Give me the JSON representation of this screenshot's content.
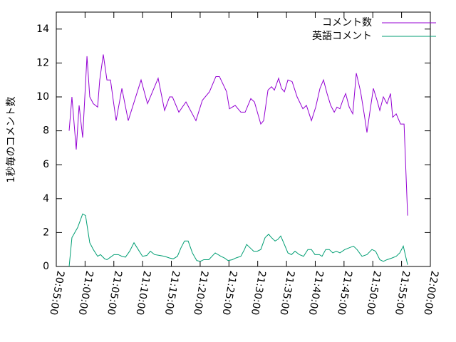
{
  "chart_data": {
    "type": "line",
    "ylabel": "1秒毎のコメント数",
    "xlim": [
      75300,
      79200
    ],
    "xticks": [
      {
        "value": 75300,
        "label": "20:55:00"
      },
      {
        "value": 75600,
        "label": "21:00:00"
      },
      {
        "value": 75900,
        "label": "21:05:00"
      },
      {
        "value": 76200,
        "label": "21:10:00"
      },
      {
        "value": 76500,
        "label": "21:15:00"
      },
      {
        "value": 76800,
        "label": "21:20:00"
      },
      {
        "value": 77100,
        "label": "21:25:00"
      },
      {
        "value": 77400,
        "label": "21:30:00"
      },
      {
        "value": 77700,
        "label": "21:35:00"
      },
      {
        "value": 78000,
        "label": "21:40:00"
      },
      {
        "value": 78300,
        "label": "21:45:00"
      },
      {
        "value": 78600,
        "label": "21:50:00"
      },
      {
        "value": 78900,
        "label": "21:55:00"
      },
      {
        "value": 79200,
        "label": "22:00:00"
      }
    ],
    "ylim": [
      0,
      15
    ],
    "yticks": [
      0,
      2,
      4,
      6,
      8,
      10,
      12,
      14
    ],
    "grid": false,
    "legend": "top-right",
    "series": [
      {
        "name": "コメント数",
        "color": "#9400d3",
        "x": [
          75434,
          75463,
          75508,
          75538,
          75575,
          75620,
          75649,
          75686,
          75731,
          75753,
          75790,
          75828,
          75865,
          75894,
          75924,
          75984,
          76050,
          76184,
          76251,
          76362,
          76429,
          76481,
          76511,
          76578,
          76652,
          76756,
          76823,
          76897,
          76964,
          77001,
          77076,
          77105,
          77165,
          77224,
          77269,
          77328,
          77366,
          77432,
          77462,
          77507,
          77544,
          77574,
          77618,
          77648,
          77678,
          77715,
          77759,
          77811,
          77871,
          77908,
          77960,
          78005,
          78049,
          78086,
          78123,
          78161,
          78198,
          78227,
          78257,
          78287,
          78317,
          78354,
          78391,
          78428,
          78473,
          78510,
          78539,
          78569,
          78606,
          78644,
          78673,
          78710,
          78748,
          78785,
          78807,
          78844,
          78889,
          78926,
          78963
        ],
        "values": [
          8.0,
          10.0,
          6.9,
          9.5,
          7.6,
          12.4,
          10.0,
          9.6,
          9.4,
          11.0,
          12.5,
          11.0,
          11.0,
          9.8,
          8.6,
          10.5,
          8.6,
          11.0,
          9.6,
          11.1,
          9.2,
          10.0,
          10.0,
          9.1,
          9.7,
          8.6,
          9.8,
          10.3,
          11.2,
          11.2,
          10.3,
          9.3,
          9.5,
          9.1,
          9.1,
          9.9,
          9.7,
          8.4,
          8.6,
          10.4,
          10.6,
          10.4,
          11.1,
          10.5,
          10.3,
          11.0,
          10.9,
          10.0,
          9.3,
          9.5,
          8.6,
          9.4,
          10.5,
          11.0,
          10.2,
          9.5,
          9.1,
          9.4,
          9.3,
          9.8,
          10.2,
          9.4,
          9.0,
          11.4,
          10.3,
          9.0,
          7.9,
          9.1,
          10.5,
          9.8,
          9.2,
          10.0,
          9.6,
          10.2,
          8.8,
          9.0,
          8.4,
          8.4,
          3.0
        ]
      },
      {
        "name": "英語コメント",
        "color": "#009e73",
        "x": [
          75434,
          75463,
          75523,
          75575,
          75605,
          75649,
          75686,
          75731,
          75761,
          75805,
          75828,
          75865,
          75902,
          75946,
          75984,
          76021,
          76065,
          76110,
          76154,
          76199,
          76244,
          76281,
          76325,
          76377,
          76429,
          76481,
          76519,
          76563,
          76600,
          76637,
          76675,
          76719,
          76764,
          76801,
          76838,
          76890,
          76957,
          77016,
          77053,
          77091,
          77135,
          77172,
          77224,
          77262,
          77284,
          77321,
          77358,
          77395,
          77432,
          77477,
          77514,
          77544,
          77581,
          77611,
          77640,
          77678,
          77715,
          77752,
          77789,
          77834,
          77878,
          77923,
          77960,
          77997,
          78042,
          78071,
          78109,
          78146,
          78183,
          78220,
          78257,
          78309,
          78354,
          78398,
          78435,
          78487,
          78539,
          78591,
          78629,
          78673,
          78710,
          78748,
          78800,
          78844,
          78881,
          78918,
          78963
        ],
        "values": [
          0,
          1.7,
          2.3,
          3.1,
          3.0,
          1.4,
          1.0,
          0.6,
          0.7,
          0.45,
          0.4,
          0.55,
          0.7,
          0.7,
          0.6,
          0.55,
          0.9,
          1.4,
          1.0,
          0.6,
          0.65,
          0.9,
          0.7,
          0.65,
          0.6,
          0.5,
          0.45,
          0.6,
          1.1,
          1.5,
          1.5,
          0.8,
          0.35,
          0.3,
          0.4,
          0.4,
          0.8,
          0.6,
          0.5,
          0.35,
          0.4,
          0.5,
          0.6,
          1.0,
          1.3,
          1.1,
          0.9,
          0.9,
          1.0,
          1.7,
          1.9,
          1.7,
          1.5,
          1.6,
          1.8,
          1.3,
          0.8,
          0.7,
          0.9,
          0.7,
          0.6,
          1.0,
          1.0,
          0.7,
          0.7,
          0.6,
          1.0,
          1.0,
          0.8,
          0.9,
          0.8,
          1.0,
          1.1,
          1.2,
          1.0,
          0.6,
          0.7,
          1.0,
          0.9,
          0.4,
          0.3,
          0.4,
          0.5,
          0.6,
          0.8,
          1.2,
          0.1
        ]
      }
    ]
  }
}
